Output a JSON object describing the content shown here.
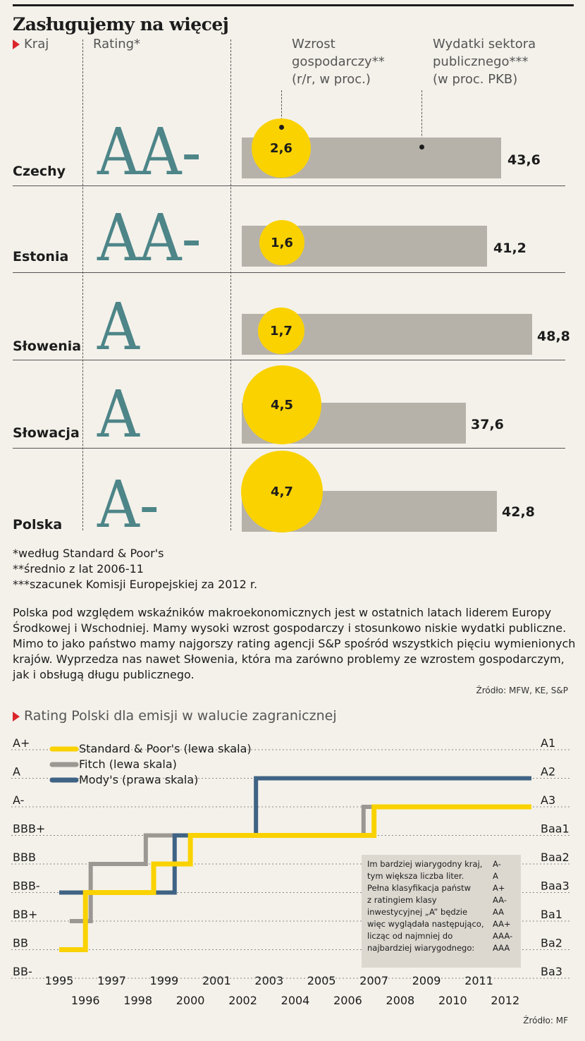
{
  "title": "Zasługujemy na więcej",
  "table": {
    "col_country": "Kraj",
    "col_rating": "Rating*",
    "col_growth": [
      "Wzrost",
      "gospodarczy**",
      "(r/r, w proc.)"
    ],
    "col_spending": [
      "Wydatki sektora",
      "publicznego***",
      "(w proc. PKB)"
    ],
    "rows": [
      {
        "country": "Czechy",
        "rating": "AA-",
        "growth": "2,6",
        "spending": "43,6"
      },
      {
        "country": "Estonia",
        "rating": "AA-",
        "growth": "1,6",
        "spending": "41,2"
      },
      {
        "country": "Słowenia",
        "rating": "A",
        "growth": "1,7",
        "spending": "48,8"
      },
      {
        "country": "Słowacja",
        "rating": "A",
        "growth": "4,5",
        "spending": "37,6"
      },
      {
        "country": "Polska",
        "rating": "A-",
        "growth": "4,7",
        "spending": "42,8"
      }
    ],
    "growth_values": [
      2.6,
      1.6,
      1.7,
      4.5,
      4.7
    ],
    "spending_values": [
      43.6,
      41.2,
      48.8,
      37.6,
      42.8
    ],
    "colors": {
      "bubble": "#fad200",
      "bar": "#b6b2aa",
      "rating": "#4d8588"
    }
  },
  "footnotes": [
    "*według Standard & Poor's",
    "**średnio z lat 2006-11",
    "***szacunek Komisji Europejskiej za 2012 r."
  ],
  "paragraph": "Polska pod względem wskaźników makroekonomicznych jest w ostatnich latach liderem Europy Środkowej i Wschodniej. Mamy wysoki wzrost gospodarczy i stosunkowo niskie wydatki publiczne. Mimo to jako państwo mamy najgorszy rating agencji S&P spośród wszystkich pięciu wymienionych krajów. Wyprzedza nas nawet Słowenia, która ma zarówno problemy ze wzrostem gospodarczym, jak i obsługą długu publicznego.",
  "source1": "Źródło: MFW, KE, S&P",
  "chart_subtitle": "Rating Polski dla emisji w walucie zagranicznej",
  "source2": "Źródło: MF",
  "chart_data": {
    "type": "line",
    "title": "Rating Polski dla emisji w walucie zagranicznej",
    "left_scale": [
      "A+",
      "A",
      "A-",
      "BBB+",
      "BBB",
      "BBB-",
      "BB+",
      "BB",
      "BB-"
    ],
    "right_scale": [
      "A1",
      "A2",
      "A3",
      "Baa1",
      "Baa2",
      "Baa3",
      "Ba1",
      "Ba2",
      "Ba3"
    ],
    "x_ticks_top": [
      "1995",
      "1997",
      "1999",
      "2001",
      "2003",
      "2005",
      "2007",
      "2009",
      "2011"
    ],
    "x_ticks_bottom": [
      "1996",
      "1998",
      "2000",
      "2002",
      "2004",
      "2006",
      "2008",
      "2010",
      "2012"
    ],
    "xlim": [
      1995,
      2013
    ],
    "grid": true,
    "legend_placement": "top-left",
    "series": [
      {
        "name": "Standard & Poor's (lewa skala)",
        "color": "#fad200",
        "steps": [
          [
            1995,
            "BB"
          ],
          [
            1996.0,
            "BBB-"
          ],
          [
            1998.6,
            "BBB"
          ],
          [
            2000.0,
            "BBB+"
          ],
          [
            2007.0,
            "A-"
          ],
          [
            2013,
            "A-"
          ]
        ]
      },
      {
        "name": "Fitch (lewa skala)",
        "color": "#9b9893",
        "steps": [
          [
            1995.4,
            "BB+"
          ],
          [
            1996.2,
            "BBB"
          ],
          [
            1998.3,
            "BBB+"
          ],
          [
            2006.6,
            "A-"
          ],
          [
            2013,
            "A-"
          ]
        ]
      },
      {
        "name": "Mody's (prawa skala)",
        "color": "#3f6384",
        "steps": [
          [
            1995,
            "Baa3"
          ],
          [
            1999.4,
            "Baa1"
          ],
          [
            2002.5,
            "A2"
          ],
          [
            2013,
            "A2"
          ]
        ]
      }
    ],
    "note": {
      "text": [
        "Im bardziej wiarygodny kraj,",
        "tym większa liczba liter.",
        "Pełna klasyfikacja państw",
        "z ratingiem klasy",
        "inwestycyjnej „A” będzie",
        "więc wyglądała następująco,",
        "licząc od najmniej do",
        "najbardziej wiarygodnego:"
      ],
      "scale": [
        "A-",
        "A",
        "A+",
        "AA-",
        "AA",
        "AA+",
        "AAA-",
        "AAA"
      ]
    }
  }
}
